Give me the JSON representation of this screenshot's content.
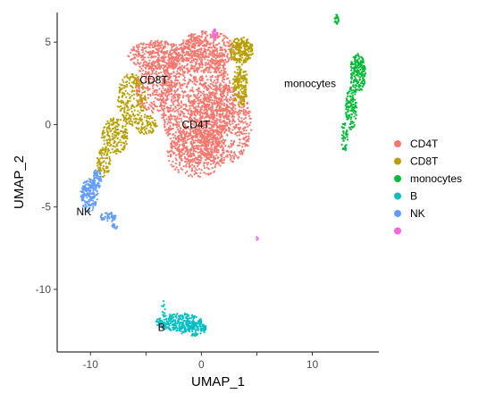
{
  "chart_data": {
    "type": "scatter",
    "xlabel": "UMAP_1",
    "ylabel": "UMAP_2",
    "xlim": [
      -13,
      16
    ],
    "ylim": [
      -13.8,
      6.8
    ],
    "x_ticks": [
      -10,
      -5,
      0,
      5,
      10
    ],
    "x_tick_labels": [
      "-10",
      "",
      "0",
      "",
      "10"
    ],
    "y_ticks": [
      5,
      0,
      -5,
      -10
    ],
    "y_tick_labels": [
      "5",
      "0",
      "-5",
      "-10"
    ],
    "grid": false,
    "legend_position": "right",
    "series": [
      {
        "name": "CD4T",
        "color": "#F8766D",
        "label": "CD4T",
        "label_pos": [
          -0.5,
          0.0
        ],
        "clusters": [
          {
            "cx": -0.5,
            "cy": 1.5,
            "rx": 3.2,
            "ry": 3.8,
            "n": 1400
          },
          {
            "cx": 2.0,
            "cy": 0.0,
            "rx": 2.6,
            "ry": 2.4,
            "n": 600
          },
          {
            "cx": -4.0,
            "cy": 4.2,
            "rx": 2.6,
            "ry": 0.9,
            "n": 350
          },
          {
            "cx": -4.3,
            "cy": 2.3,
            "rx": 1.6,
            "ry": 1.6,
            "n": 250
          },
          {
            "cx": 0.5,
            "cy": 4.5,
            "rx": 2.5,
            "ry": 1.2,
            "n": 300
          },
          {
            "cx": -0.5,
            "cy": -1.8,
            "rx": 2.6,
            "ry": 1.4,
            "n": 300
          }
        ]
      },
      {
        "name": "CD8T",
        "color": "#B79F00",
        "label": "CD8T",
        "label_pos": [
          -4.3,
          2.7
        ],
        "clusters": [
          {
            "cx": 3.6,
            "cy": 4.5,
            "rx": 1.1,
            "ry": 0.8,
            "n": 220
          },
          {
            "cx": 3.5,
            "cy": 2.4,
            "rx": 0.7,
            "ry": 1.3,
            "n": 160
          },
          {
            "cx": -6.3,
            "cy": 1.5,
            "rx": 1.3,
            "ry": 1.6,
            "n": 220
          },
          {
            "cx": -7.8,
            "cy": -0.7,
            "rx": 1.2,
            "ry": 1.1,
            "n": 180
          },
          {
            "cx": -8.8,
            "cy": -2.3,
            "rx": 0.6,
            "ry": 0.9,
            "n": 80
          },
          {
            "cx": -5.0,
            "cy": 0.0,
            "rx": 1.0,
            "ry": 0.6,
            "n": 80
          }
        ]
      },
      {
        "name": "monocytes",
        "color": "#00BA38",
        "label": "monocytes",
        "label_pos": [
          9.8,
          2.5
        ],
        "clusters": [
          {
            "cx": 14.1,
            "cy": 3.1,
            "rx": 0.7,
            "ry": 1.2,
            "n": 200
          },
          {
            "cx": 13.5,
            "cy": 1.0,
            "rx": 0.5,
            "ry": 1.3,
            "n": 120
          },
          {
            "cx": 12.9,
            "cy": -0.7,
            "rx": 0.3,
            "ry": 0.9,
            "n": 40
          },
          {
            "cx": 12.2,
            "cy": 6.4,
            "rx": 0.2,
            "ry": 0.35,
            "n": 25
          }
        ]
      },
      {
        "name": "B",
        "color": "#00BFC4",
        "label": "B",
        "label_pos": [
          -3.6,
          -12.3
        ],
        "clusters": [
          {
            "cx": -2.0,
            "cy": -12.0,
            "rx": 2.1,
            "ry": 0.55,
            "n": 260
          },
          {
            "cx": -0.8,
            "cy": -12.4,
            "rx": 1.3,
            "ry": 0.45,
            "n": 120
          },
          {
            "cx": -3.4,
            "cy": -11.2,
            "rx": 0.2,
            "ry": 0.5,
            "n": 12
          }
        ]
      },
      {
        "name": "NK",
        "color": "#619CFF",
        "label": "NK",
        "label_pos": [
          -10.6,
          -5.3
        ],
        "clusters": [
          {
            "cx": -10.1,
            "cy": -4.3,
            "rx": 0.8,
            "ry": 1.0,
            "n": 180
          },
          {
            "cx": -9.4,
            "cy": -3.3,
            "rx": 0.4,
            "ry": 0.6,
            "n": 60
          },
          {
            "cx": -8.4,
            "cy": -5.6,
            "rx": 0.7,
            "ry": 0.3,
            "n": 50
          },
          {
            "cx": -7.8,
            "cy": -6.2,
            "rx": 0.3,
            "ry": 0.2,
            "n": 15
          }
        ]
      },
      {
        "name": "",
        "color": "#F564E3",
        "label": "",
        "label_pos": null,
        "clusters": [
          {
            "cx": 1.2,
            "cy": 5.5,
            "rx": 0.2,
            "ry": 0.3,
            "n": 25
          },
          {
            "cx": 5.0,
            "cy": -6.9,
            "rx": 0.1,
            "ry": 0.1,
            "n": 4
          }
        ]
      }
    ]
  }
}
